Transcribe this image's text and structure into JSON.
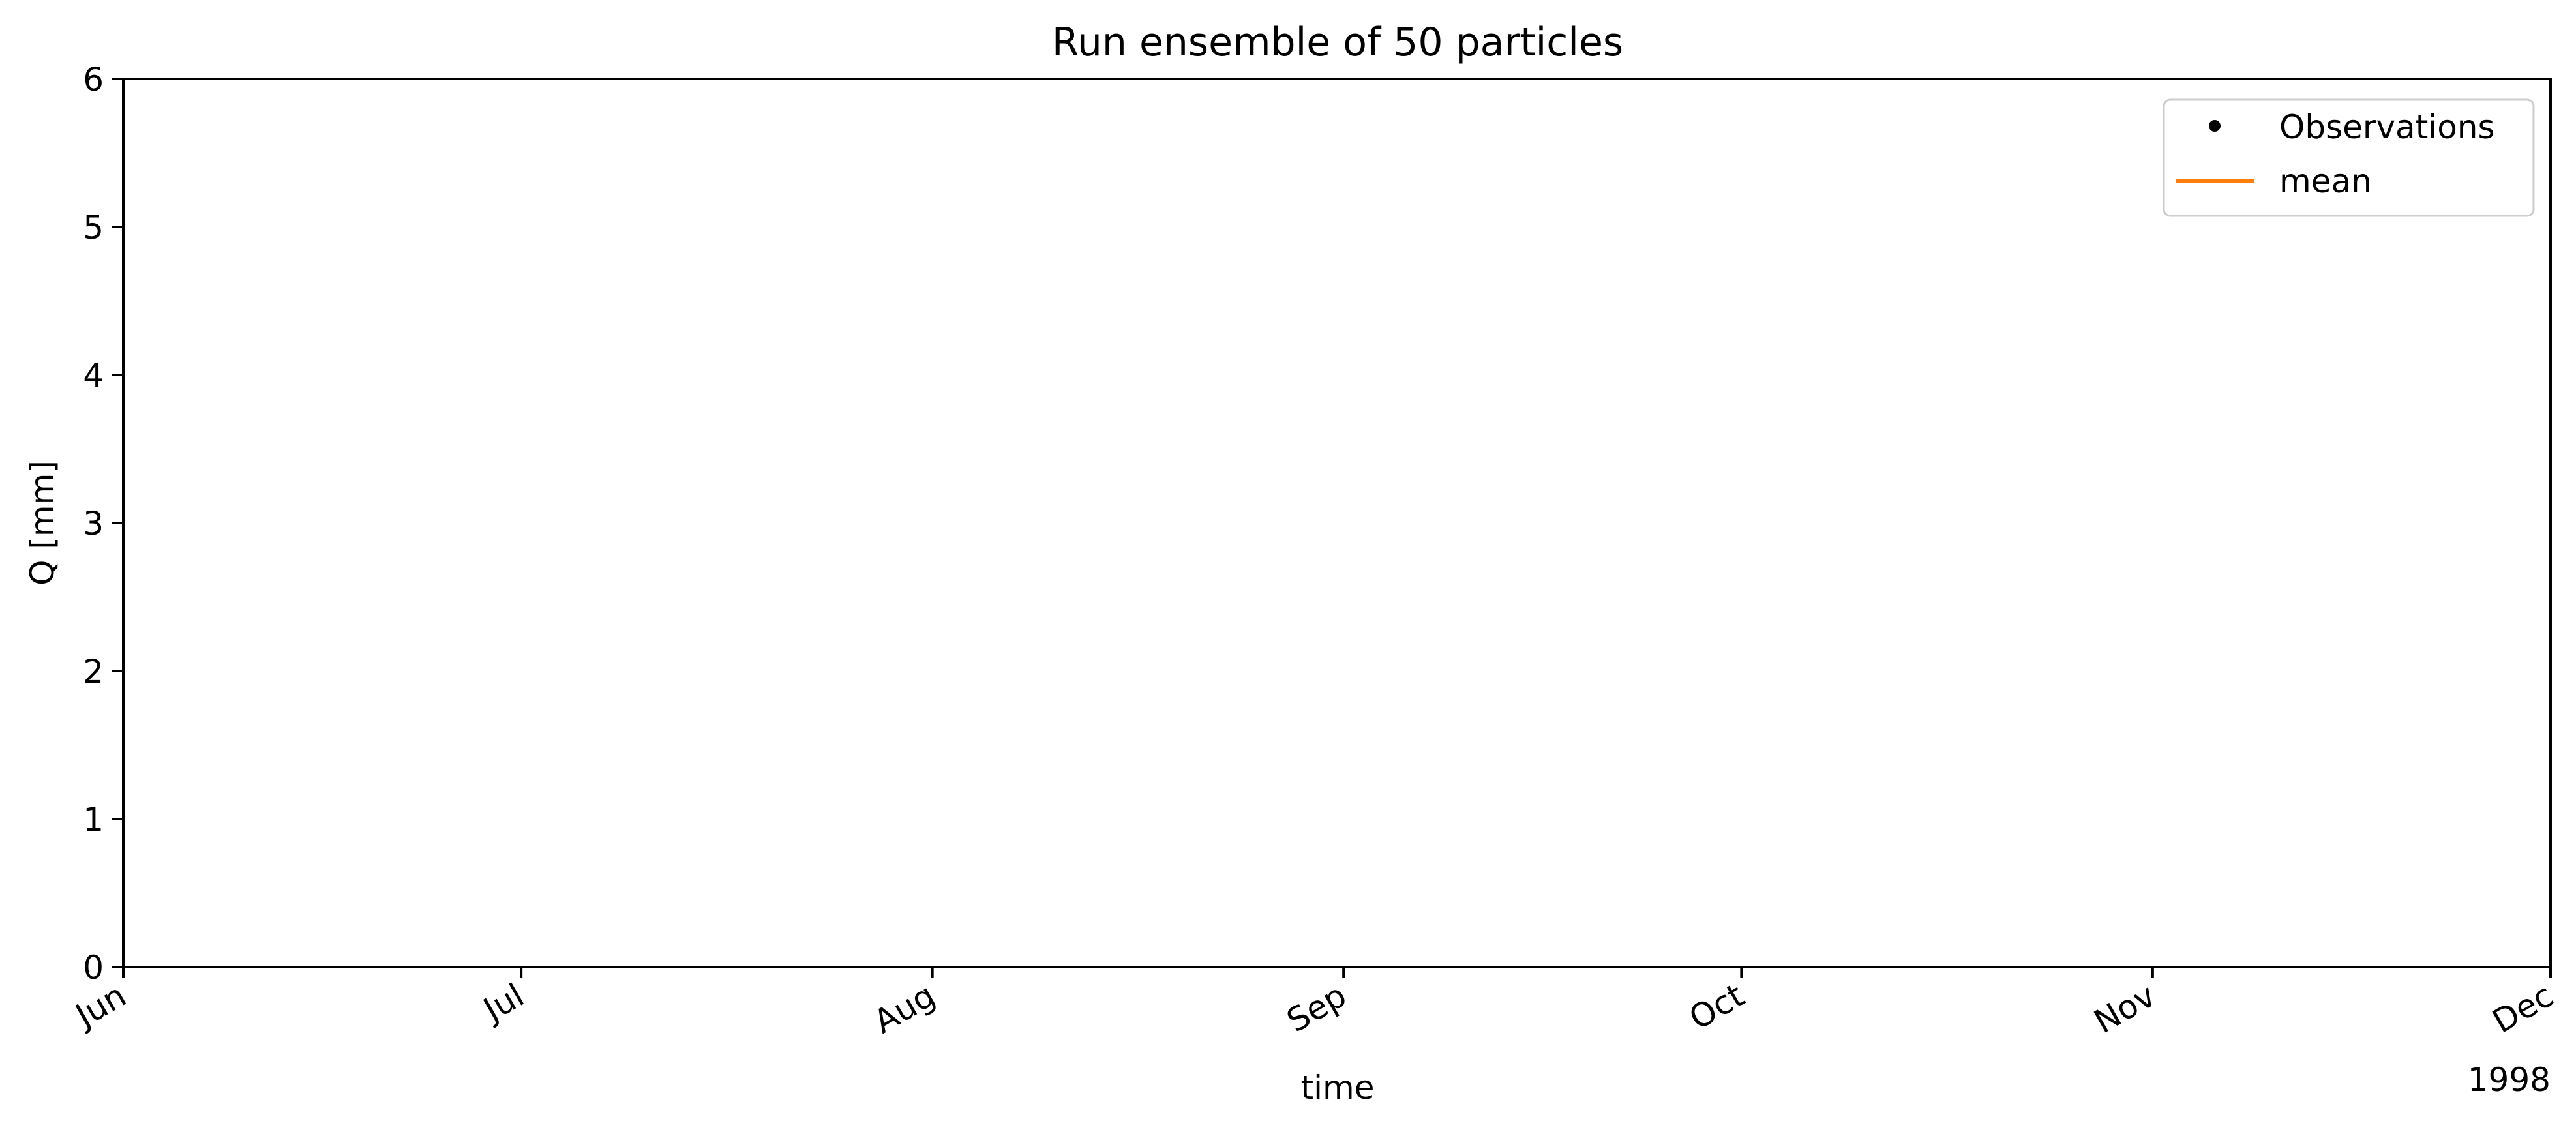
{
  "chart_data": {
    "type": "line",
    "title": "Run ensemble of 50 particles",
    "xlabel": "time",
    "ylabel": "Q [mm]",
    "x_offset_label": "1998",
    "xlim": [
      "1998-06-01",
      "1998-12-01"
    ],
    "ylim": [
      0,
      6
    ],
    "x_ticks": [
      {
        "date": "1998-06-01",
        "label": "Jun"
      },
      {
        "date": "1998-07-01",
        "label": "Jul"
      },
      {
        "date": "1998-08-01",
        "label": "Aug"
      },
      {
        "date": "1998-09-01",
        "label": "Sep"
      },
      {
        "date": "1998-10-01",
        "label": "Oct"
      },
      {
        "date": "1998-11-01",
        "label": "Nov"
      },
      {
        "date": "1998-12-01",
        "label": "Dec"
      }
    ],
    "y_ticks": [
      0,
      1,
      2,
      3,
      4,
      5,
      6
    ],
    "grid": false,
    "legend_position": "top-right",
    "series": [
      {
        "name": "Observations",
        "marker": "dot",
        "color": "#000000",
        "points": []
      },
      {
        "name": "mean",
        "marker": "line",
        "color": "#ff7f0e",
        "points": []
      }
    ]
  }
}
